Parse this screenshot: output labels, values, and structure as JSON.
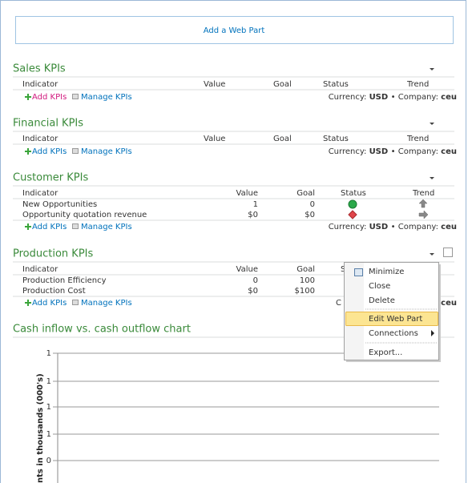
{
  "add_web_part": "Add a Web Part",
  "sections": [
    {
      "title": "Sales KPIs",
      "columns": [
        "Indicator",
        "Value",
        "Goal",
        "Status",
        "Trend"
      ],
      "rows": [],
      "add_kpis": "Add KPIs",
      "manage_kpis": "Manage KPIs",
      "currency_label": "Currency:",
      "currency": "USD",
      "separator": "•",
      "company_label": "Company:",
      "company": "ceu"
    },
    {
      "title": "Financial KPIs",
      "columns": [
        "Indicator",
        "Value",
        "Goal",
        "Status",
        "Trend"
      ],
      "rows": [],
      "add_kpis": "Add KPIs",
      "manage_kpis": "Manage KPIs",
      "currency_label": "Currency:",
      "currency": "USD",
      "separator": "•",
      "company_label": "Company:",
      "company": "ceu"
    },
    {
      "title": "Customer KPIs",
      "columns": [
        "Indicator",
        "Value",
        "Goal",
        "Status",
        "Trend"
      ],
      "rows": [
        [
          "New Opportunities",
          "1",
          "0"
        ],
        [
          "Opportunity quotation revenue",
          "$0",
          "$0"
        ]
      ],
      "add_kpis": "Add KPIs",
      "manage_kpis": "Manage KPIs",
      "currency_label": "Currency:",
      "currency": "USD",
      "separator": "•",
      "company_label": "Company:",
      "company": "ceu"
    },
    {
      "title": "Production KPIs",
      "columns": [
        "Indicator",
        "Value",
        "Goal",
        "S"
      ],
      "rows": [
        [
          "Production Efficiency",
          "0",
          "100"
        ],
        [
          "Production Cost",
          "$0",
          "$100"
        ]
      ],
      "add_kpis": "Add KPIs",
      "manage_kpis": "Manage KPIs",
      "currency_label": "C",
      "company": "ceu"
    }
  ],
  "context_menu": {
    "items": [
      "Minimize",
      "Close",
      "Delete",
      "Edit Web Part",
      "Connections",
      "Export..."
    ]
  },
  "chart": {
    "title": "Cash inflow vs. cash outflow chart",
    "y_axis_label": "nts in thousands (000's)",
    "y_tick_labels": [
      "1",
      "1",
      "1",
      "1",
      "0"
    ]
  }
}
